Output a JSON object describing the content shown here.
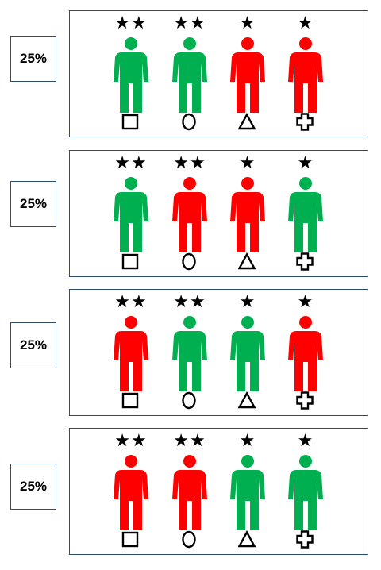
{
  "rows": [
    {
      "percent": "25%",
      "people": [
        {
          "stars": "★★",
          "status": "green",
          "symbol": "square"
        },
        {
          "stars": "★★",
          "status": "green",
          "symbol": "ellipse"
        },
        {
          "stars": "★",
          "status": "red",
          "symbol": "triangle"
        },
        {
          "stars": "★",
          "status": "red",
          "symbol": "cross"
        }
      ]
    },
    {
      "percent": "25%",
      "people": [
        {
          "stars": "★★",
          "status": "green",
          "symbol": "square"
        },
        {
          "stars": "★★",
          "status": "red",
          "symbol": "ellipse"
        },
        {
          "stars": "★",
          "status": "red",
          "symbol": "triangle"
        },
        {
          "stars": "★",
          "status": "green",
          "symbol": "cross"
        }
      ]
    },
    {
      "percent": "25%",
      "people": [
        {
          "stars": "★★",
          "status": "red",
          "symbol": "square"
        },
        {
          "stars": "★★",
          "status": "green",
          "symbol": "ellipse"
        },
        {
          "stars": "★",
          "status": "green",
          "symbol": "triangle"
        },
        {
          "stars": "★",
          "status": "red",
          "symbol": "cross"
        }
      ]
    },
    {
      "percent": "25%",
      "people": [
        {
          "stars": "★★",
          "status": "red",
          "symbol": "square"
        },
        {
          "stars": "★★",
          "status": "red",
          "symbol": "ellipse"
        },
        {
          "stars": "★",
          "status": "green",
          "symbol": "triangle"
        },
        {
          "stars": "★",
          "status": "green",
          "symbol": "cross"
        }
      ]
    }
  ],
  "colors": {
    "green": "#00b050",
    "red": "#ff0000",
    "border": "#2f4b6e"
  }
}
